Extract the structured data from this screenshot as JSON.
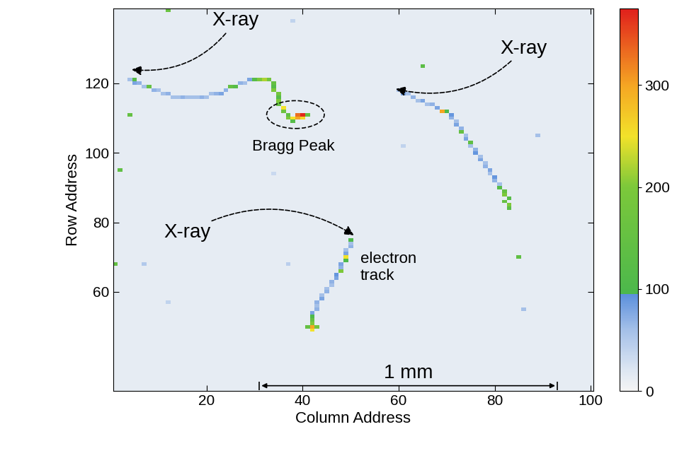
{
  "chart_data": {
    "type": "heatmap",
    "xlabel": "Column Address",
    "ylabel": "Row Address",
    "xlim": [
      0.5,
      100.5
    ],
    "ylim": [
      31.5,
      141.5
    ],
    "xticks": [
      20,
      40,
      60,
      80,
      100
    ],
    "yticks": [
      60,
      80,
      100,
      120
    ],
    "background": 12,
    "cells": [
      [
        4,
        121,
        60
      ],
      [
        5,
        121,
        120
      ],
      [
        5,
        120,
        80
      ],
      [
        6,
        120,
        70
      ],
      [
        7,
        119,
        60
      ],
      [
        8,
        119,
        150
      ],
      [
        9,
        118,
        70
      ],
      [
        10,
        118,
        60
      ],
      [
        11,
        117,
        60
      ],
      [
        12,
        117,
        70
      ],
      [
        13,
        116,
        60
      ],
      [
        14,
        116,
        60
      ],
      [
        15,
        116,
        70
      ],
      [
        16,
        116,
        60
      ],
      [
        17,
        116,
        60
      ],
      [
        18,
        116,
        60
      ],
      [
        19,
        116,
        70
      ],
      [
        20,
        116,
        60
      ],
      [
        21,
        117,
        60
      ],
      [
        22,
        117,
        70
      ],
      [
        23,
        117,
        80
      ],
      [
        24,
        118,
        70
      ],
      [
        25,
        119,
        150
      ],
      [
        26,
        119,
        120
      ],
      [
        27,
        120,
        70
      ],
      [
        28,
        120,
        60
      ],
      [
        29,
        121,
        80
      ],
      [
        30,
        121,
        120
      ],
      [
        31,
        121,
        200
      ],
      [
        32,
        121,
        220
      ],
      [
        33,
        121,
        180
      ],
      [
        34,
        120,
        150
      ],
      [
        34,
        119,
        120
      ],
      [
        34,
        118,
        200
      ],
      [
        35,
        117,
        180
      ],
      [
        35,
        116,
        120
      ],
      [
        35,
        115,
        200
      ],
      [
        35,
        114,
        150
      ],
      [
        36,
        113,
        250
      ],
      [
        36,
        112,
        170
      ],
      [
        37,
        111,
        140
      ],
      [
        37,
        110,
        200
      ],
      [
        38,
        110,
        250
      ],
      [
        39,
        110,
        300
      ],
      [
        40,
        110,
        260
      ],
      [
        40,
        111,
        370
      ],
      [
        39,
        111,
        330
      ],
      [
        38,
        109,
        120
      ],
      [
        41,
        111,
        150
      ],
      [
        60,
        118,
        60
      ],
      [
        61,
        117,
        80
      ],
      [
        62,
        117,
        60
      ],
      [
        63,
        116,
        70
      ],
      [
        64,
        115,
        60
      ],
      [
        65,
        115,
        80
      ],
      [
        66,
        114,
        60
      ],
      [
        67,
        114,
        70
      ],
      [
        68,
        113,
        80
      ],
      [
        69,
        112,
        300
      ],
      [
        70,
        112,
        100
      ],
      [
        71,
        111,
        90
      ],
      [
        71,
        110,
        70
      ],
      [
        72,
        109,
        60
      ],
      [
        72,
        108,
        80
      ],
      [
        73,
        107,
        70
      ],
      [
        73,
        106,
        150
      ],
      [
        74,
        105,
        60
      ],
      [
        74,
        104,
        80
      ],
      [
        75,
        103,
        140
      ],
      [
        75,
        102,
        60
      ],
      [
        76,
        101,
        70
      ],
      [
        76,
        100,
        90
      ],
      [
        77,
        99,
        60
      ],
      [
        77,
        98,
        80
      ],
      [
        78,
        97,
        60
      ],
      [
        78,
        96,
        70
      ],
      [
        79,
        95,
        80
      ],
      [
        79,
        94,
        60
      ],
      [
        80,
        93,
        90
      ],
      [
        80,
        92,
        70
      ],
      [
        81,
        91,
        60
      ],
      [
        81,
        90,
        120
      ],
      [
        82,
        89,
        150
      ],
      [
        82,
        88,
        200
      ],
      [
        83,
        87,
        120
      ],
      [
        82,
        86,
        150
      ],
      [
        83,
        85,
        200
      ],
      [
        83,
        84,
        130
      ],
      [
        50,
        75,
        100
      ],
      [
        50,
        74,
        60
      ],
      [
        50,
        73,
        70
      ],
      [
        49,
        72,
        60
      ],
      [
        49,
        71,
        80
      ],
      [
        49,
        70,
        250
      ],
      [
        49,
        69,
        100
      ],
      [
        48,
        68,
        80
      ],
      [
        48,
        67,
        70
      ],
      [
        48,
        66,
        200
      ],
      [
        47,
        65,
        90
      ],
      [
        47,
        64,
        80
      ],
      [
        46,
        63,
        70
      ],
      [
        46,
        62,
        60
      ],
      [
        45,
        61,
        60
      ],
      [
        45,
        60,
        70
      ],
      [
        44,
        59,
        60
      ],
      [
        44,
        58,
        80
      ],
      [
        43,
        57,
        70
      ],
      [
        43,
        56,
        60
      ],
      [
        43,
        55,
        70
      ],
      [
        42,
        54,
        80
      ],
      [
        42,
        53,
        100
      ],
      [
        42,
        52,
        150
      ],
      [
        42,
        51,
        200
      ],
      [
        42,
        50,
        300
      ],
      [
        41,
        50,
        150
      ],
      [
        43,
        50,
        180
      ],
      [
        42,
        49,
        250
      ],
      [
        4,
        111,
        150
      ],
      [
        2,
        95,
        140
      ],
      [
        1,
        68,
        150
      ],
      [
        65,
        125,
        130
      ],
      [
        85,
        70,
        140
      ],
      [
        12,
        141,
        160
      ],
      [
        38,
        138,
        40
      ],
      [
        7,
        68,
        50
      ],
      [
        12,
        57,
        40
      ],
      [
        37,
        68,
        45
      ],
      [
        86,
        55,
        60
      ],
      [
        61,
        102,
        40
      ],
      [
        89,
        105,
        60
      ],
      [
        34,
        94,
        35
      ]
    ],
    "colorbar": {
      "range": [
        0,
        375
      ],
      "ticks": [
        0,
        100,
        200,
        300
      ]
    },
    "annotations": [
      {
        "text": "X-ray",
        "x": 26,
        "y": 138,
        "arrow_to": [
          4,
          124
        ]
      },
      {
        "text": "X-ray",
        "x": 86,
        "y": 130,
        "arrow_to": [
          59,
          118.5
        ]
      },
      {
        "text": "X-ray",
        "x": 16,
        "y": 77,
        "arrow_to": [
          51,
          76
        ]
      },
      {
        "text": "Bragg Peak",
        "x": 38,
        "y": 104,
        "circle": [
          38.5,
          111
        ]
      },
      {
        "text": "electron\ntrack",
        "x": 52,
        "y": 67
      }
    ],
    "scale_bar": {
      "label": "1 mm",
      "x": [
        31,
        93
      ],
      "y": 33
    }
  }
}
